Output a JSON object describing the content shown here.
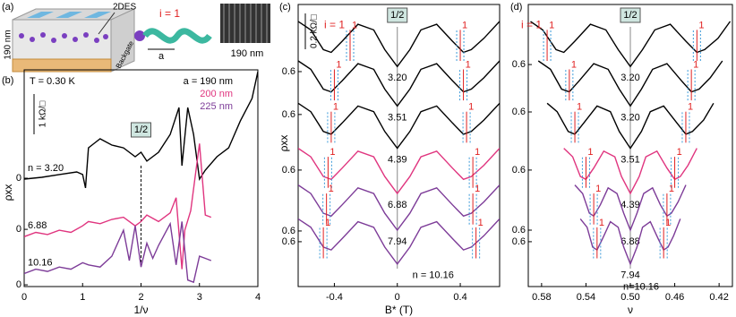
{
  "panel_a": {
    "label": "(a)",
    "height_label": "190 nm",
    "layer_label": "2DES",
    "gate_label": "Backgate",
    "helix_label": "i = 1",
    "period_label": "a",
    "sem_scale_label": "190 nm"
  },
  "chart_data": [
    {
      "type": "line",
      "panel_label": "(b)",
      "x_label": "1/ν",
      "y_label": "ρxx",
      "xlim": [
        0,
        4
      ],
      "xticks": [
        0,
        1,
        2,
        3,
        4
      ],
      "ylim": [
        0,
        10
      ],
      "yticks": [
        {
          "value": 5.0,
          "label": "0"
        },
        {
          "value": 2.64,
          "label": "0"
        },
        {
          "value": 0.08,
          "label": "0"
        }
      ],
      "temperature": "T = 0.30 K",
      "scale_bar": "1 kΩ/□",
      "half_filling": {
        "x": 2,
        "label": "1/2"
      },
      "series": [
        {
          "name": "a = 190 nm",
          "label": "n = 3.20",
          "color": "#000000",
          "x": [
            0,
            0.3,
            0.6,
            0.9,
            1.0,
            1.05,
            1.1,
            1.2,
            1.3,
            1.5,
            1.7,
            1.9,
            2.0,
            2.1,
            2.3,
            2.5,
            2.65,
            2.7,
            2.8,
            2.9,
            3.0,
            3.1,
            3.3,
            3.5,
            3.7,
            3.9,
            4.0
          ],
          "values": [
            4.96,
            5.04,
            5.17,
            5.29,
            5.17,
            4.55,
            6.4,
            6.61,
            6.82,
            6.53,
            6.4,
            5.99,
            6.2,
            5.79,
            6.2,
            7.02,
            8.26,
            5.58,
            8.26,
            7.02,
            4.96,
            5.37,
            5.99,
            6.4,
            7.64,
            8.68,
            9.92
          ]
        },
        {
          "name": "200 nm",
          "label": "6.88",
          "color": "#e0357f",
          "x": [
            0,
            0.2,
            0.4,
            0.6,
            0.8,
            1.0,
            1.1,
            1.3,
            1.5,
            1.7,
            1.9,
            2.0,
            2.1,
            2.3,
            2.5,
            2.6,
            2.7,
            2.75,
            2.85,
            3.0,
            3.1,
            3.2
          ],
          "values": [
            2.3,
            2.5,
            2.4,
            2.6,
            2.5,
            2.8,
            3.0,
            2.9,
            3.1,
            3.2,
            2.8,
            3.0,
            3.3,
            3.0,
            3.4,
            4.1,
            0.8,
            2.6,
            3.5,
            6.6,
            3.3,
            3.2
          ]
        },
        {
          "name": "225 nm",
          "label": "10.16",
          "color": "#7d3c98",
          "x": [
            0,
            0.2,
            0.4,
            0.6,
            0.8,
            1.0,
            1.1,
            1.3,
            1.5,
            1.7,
            1.8,
            1.9,
            2.0,
            2.1,
            2.2,
            2.3,
            2.5,
            2.6,
            2.7,
            2.8,
            2.9,
            3.0,
            3.1,
            3.2
          ],
          "values": [
            0.6,
            0.8,
            0.7,
            0.9,
            0.8,
            1.1,
            1.0,
            0.9,
            1.4,
            2.6,
            1.2,
            2.8,
            0.9,
            2.0,
            1.3,
            1.9,
            2.9,
            1.0,
            3.0,
            0.3,
            0.2,
            1.4,
            1.3,
            1.2
          ]
        }
      ]
    },
    {
      "type": "line",
      "panel_label": "(c)",
      "x_label": "B* (T)",
      "y_label": "ρxx",
      "xlim": [
        -0.63,
        0.65
      ],
      "xticks": [
        -0.4,
        0,
        0.4
      ],
      "ylim": [
        0,
        10
      ],
      "yticks": [
        {
          "value": 7.62,
          "label": "0.6"
        },
        {
          "value": 6.1,
          "label": "0.6"
        },
        {
          "value": 4.13,
          "label": "0.6"
        },
        {
          "value": 1.97,
          "label": "0.6"
        },
        {
          "value": 1.59,
          "label": "0.6"
        }
      ],
      "scale_bar": "0.2 kΩ/□",
      "marker_title": "i = 1",
      "marker_label": "1",
      "half_filling": {
        "x": 0,
        "label": "1/2"
      },
      "series": [
        {
          "label": "3.20",
          "color": "#000000",
          "marker_x": [
            -0.3,
            0.4
          ],
          "x": [
            -0.63,
            -0.55,
            -0.47,
            -0.42,
            -0.35,
            -0.25,
            -0.15,
            -0.08,
            0,
            0.08,
            0.15,
            0.25,
            0.35,
            0.42,
            0.47,
            0.55,
            0.65
          ],
          "values": [
            9.4,
            9.1,
            8.4,
            8.3,
            8.7,
            9.3,
            9.1,
            8.4,
            7.8,
            8.4,
            9.1,
            9.3,
            8.7,
            8.3,
            8.4,
            8.8,
            9.4
          ]
        },
        {
          "label": "3.51",
          "color": "#000000",
          "marker_x": [
            -0.4,
            0.42
          ],
          "x": [
            -0.63,
            -0.55,
            -0.47,
            -0.42,
            -0.35,
            -0.25,
            -0.15,
            -0.08,
            0,
            0.08,
            0.15,
            0.25,
            0.35,
            0.42,
            0.47,
            0.55,
            0.65
          ],
          "values": [
            8.0,
            7.7,
            7.0,
            6.9,
            7.3,
            7.9,
            7.7,
            7.0,
            6.4,
            7.0,
            7.7,
            7.9,
            7.3,
            6.9,
            7.0,
            7.4,
            8.0
          ]
        },
        {
          "label": "4.39",
          "color": "#000000",
          "marker_x": [
            -0.42,
            0.44
          ],
          "x": [
            -0.63,
            -0.55,
            -0.47,
            -0.42,
            -0.35,
            -0.25,
            -0.15,
            -0.08,
            0,
            0.08,
            0.15,
            0.25,
            0.35,
            0.42,
            0.47,
            0.55,
            0.65
          ],
          "values": [
            6.5,
            6.2,
            5.5,
            5.4,
            5.8,
            6.4,
            6.2,
            5.5,
            4.9,
            5.5,
            6.2,
            6.4,
            5.8,
            5.4,
            5.5,
            5.9,
            6.5
          ]
        },
        {
          "label": "6.88",
          "color": "#e0357f",
          "marker_x": [
            -0.44,
            0.48
          ],
          "x": [
            -0.63,
            -0.55,
            -0.47,
            -0.42,
            -0.35,
            -0.25,
            -0.15,
            -0.08,
            0,
            0.08,
            0.15,
            0.25,
            0.35,
            0.42,
            0.47,
            0.55,
            0.65
          ],
          "values": [
            4.9,
            4.6,
            3.9,
            3.8,
            4.2,
            4.8,
            4.6,
            3.9,
            3.3,
            3.9,
            4.6,
            4.8,
            4.2,
            3.8,
            3.9,
            4.3,
            4.9
          ]
        },
        {
          "label": "7.94",
          "color": "#7d3c98",
          "marker_x": [
            -0.45,
            0.48
          ],
          "x": [
            -0.63,
            -0.55,
            -0.47,
            -0.42,
            -0.35,
            -0.25,
            -0.15,
            -0.08,
            0,
            0.08,
            0.15,
            0.25,
            0.35,
            0.42,
            0.47,
            0.55,
            0.65
          ],
          "values": [
            3.6,
            3.3,
            2.6,
            2.5,
            2.9,
            3.5,
            3.3,
            2.6,
            2.0,
            2.6,
            3.3,
            3.5,
            2.9,
            2.5,
            2.6,
            3.0,
            3.6
          ]
        },
        {
          "label": "n = 10.16",
          "color": "#7d3c98",
          "marker_x": [
            -0.47,
            0.5
          ],
          "x": [
            -0.63,
            -0.55,
            -0.47,
            -0.42,
            -0.35,
            -0.25,
            -0.15,
            -0.08,
            0,
            0.08,
            0.15,
            0.25,
            0.35,
            0.42,
            0.47,
            0.55,
            0.65
          ],
          "values": [
            2.4,
            2.1,
            1.4,
            1.3,
            1.7,
            2.3,
            2.1,
            1.4,
            0.8,
            1.4,
            2.1,
            2.3,
            1.7,
            1.3,
            1.4,
            1.8,
            2.4
          ]
        }
      ]
    },
    {
      "type": "line",
      "panel_label": "(d)",
      "x_label": "ν",
      "xlim": [
        0.592,
        0.408
      ],
      "xticks": [
        0.58,
        0.54,
        {
          "value": 0.5,
          "label": "0.50"
        },
        0.46,
        0.42
      ],
      "ylim": [
        0,
        10
      ],
      "yticks": [
        {
          "value": 7.87,
          "label": "0.6"
        },
        {
          "value": 6.19,
          "label": "0.6"
        },
        {
          "value": 4.13,
          "label": "0.6"
        },
        {
          "value": 2.0,
          "label": "0.6"
        },
        {
          "value": 1.59,
          "label": "0.6"
        }
      ],
      "marker_title": "i = 1",
      "marker_label": "1",
      "half_filling": {
        "x": 0.5,
        "label": "1/2"
      },
      "series": [
        {
          "label": "3.20",
          "color": "#000000",
          "marker_x": [
            0.575,
            0.44
          ],
          "x": [
            0.59,
            0.579,
            0.567,
            0.56,
            0.55,
            0.536,
            0.522,
            0.511,
            0.5,
            0.489,
            0.478,
            0.464,
            0.45,
            0.44,
            0.433,
            0.421,
            0.41
          ],
          "values": [
            9.4,
            9.1,
            8.4,
            8.3,
            8.7,
            9.3,
            9.1,
            8.4,
            7.8,
            8.4,
            9.1,
            9.3,
            8.7,
            8.3,
            8.4,
            8.8,
            9.4
          ]
        },
        {
          "label": "3.20",
          "color": "#000000",
          "marker_x": [
            0.555,
            0.445
          ],
          "x": [
            0.583,
            0.572,
            0.562,
            0.555,
            0.546,
            0.533,
            0.52,
            0.51,
            0.5,
            0.49,
            0.48,
            0.467,
            0.454,
            0.445,
            0.438,
            0.428,
            0.417
          ],
          "values": [
            8.0,
            7.7,
            7.0,
            6.9,
            7.3,
            7.9,
            7.7,
            7.0,
            6.4,
            7.0,
            7.7,
            7.9,
            7.3,
            6.9,
            7.0,
            7.4,
            8.0
          ]
        },
        {
          "label": "3.51",
          "color": "#000000",
          "marker_x": [
            0.55,
            0.45
          ],
          "x": [
            0.575,
            0.566,
            0.556,
            0.55,
            0.542,
            0.53,
            0.518,
            0.51,
            0.5,
            0.49,
            0.482,
            0.47,
            0.458,
            0.45,
            0.444,
            0.434,
            0.425
          ],
          "values": [
            6.5,
            6.2,
            5.5,
            5.4,
            5.8,
            6.4,
            6.2,
            5.5,
            4.9,
            5.5,
            6.2,
            6.4,
            5.8,
            5.4,
            5.5,
            5.9,
            6.5
          ]
        },
        {
          "label": "4.39",
          "color": "#e0357f",
          "marker_x": [
            0.54,
            0.46
          ],
          "x": [
            0.56,
            0.552,
            0.545,
            0.54,
            0.533,
            0.524,
            0.514,
            0.508,
            0.5,
            0.492,
            0.486,
            0.476,
            0.467,
            0.46,
            0.455,
            0.448,
            0.44
          ],
          "values": [
            4.9,
            4.6,
            3.9,
            3.8,
            4.2,
            4.8,
            4.6,
            3.9,
            3.3,
            3.9,
            4.6,
            4.8,
            4.2,
            3.8,
            3.9,
            4.3,
            4.9
          ]
        },
        {
          "label": "6.88",
          "color": "#7d3c98",
          "marker_x": [
            0.533,
            0.467
          ],
          "x": [
            0.55,
            0.543,
            0.537,
            0.533,
            0.527,
            0.52,
            0.512,
            0.506,
            0.5,
            0.494,
            0.488,
            0.48,
            0.473,
            0.467,
            0.463,
            0.457,
            0.45
          ],
          "values": [
            3.6,
            3.3,
            2.6,
            2.5,
            2.9,
            3.5,
            3.3,
            2.6,
            2.0,
            2.6,
            3.3,
            3.5,
            2.9,
            2.5,
            2.6,
            3.0,
            3.6
          ]
        },
        {
          "label": "7.94",
          "color": "#7d3c98",
          "marker_x": [
            0.53,
            0.47
          ],
          "x": [
            0.545,
            0.539,
            0.534,
            0.53,
            0.525,
            0.518,
            0.511,
            0.506,
            0.5,
            0.494,
            0.489,
            0.482,
            0.475,
            0.47,
            0.466,
            0.461,
            0.455
          ],
          "values": [
            2.4,
            2.1,
            1.4,
            1.3,
            1.7,
            2.3,
            2.1,
            1.4,
            0.8,
            1.4,
            2.1,
            2.3,
            1.7,
            1.3,
            1.4,
            1.8,
            2.4
          ]
        }
      ],
      "end_label": "n=10.16"
    }
  ]
}
